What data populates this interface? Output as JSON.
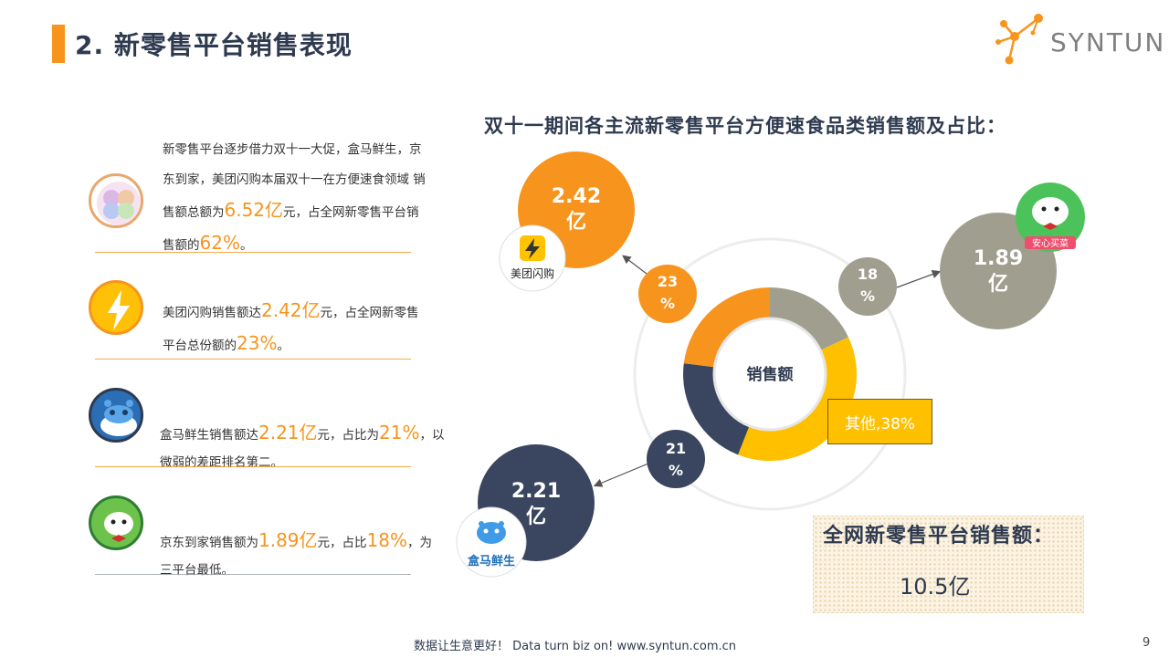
{
  "header": {
    "title": "2. 新零售平台销售表现",
    "brand": "SYNTUN"
  },
  "left_panel": {
    "rows": [
      {
        "icon": "hema-meituan-jd-collage-icon",
        "text_before": "新零售平台逐步借力双十一大促，盒马鲜生，京东到家，美团闪购本届双十一在方便速食领域 销售额总额为",
        "highlight1": "6.52亿",
        "text_middle": "元，占全网新零售平台销售额的",
        "highlight2": "62%",
        "text_after": "。"
      },
      {
        "icon": "meituan-lightning-icon",
        "text_before": "美团闪购销售额达",
        "highlight1": "2.42亿",
        "text_middle": "元，占全网新零售平台总份额的",
        "highlight2": "23%",
        "text_after": "。"
      },
      {
        "icon": "hema-hippo-icon",
        "text_before": "盒马鲜生销售额达",
        "highlight1": "2.21亿",
        "text_middle": "元，占比为",
        "highlight2": "21%",
        "text_after": "，以微弱的差距排名第二。"
      },
      {
        "icon": "jd-dog-icon",
        "text_before": "京东到家销售额为",
        "highlight1": "1.89亿",
        "text_middle": "元，占比",
        "highlight2": "18%",
        "text_after": "，为三平台最低。"
      }
    ]
  },
  "chart_data": {
    "type": "pie",
    "title": "双十一期间各主流新零售平台方便速食品类销售额及占比：",
    "center_label": "销售额",
    "slices": [
      {
        "name": "京东到家",
        "value": 18,
        "amount": "1.89亿",
        "pct_label": "18%",
        "color": "#A09F8F"
      },
      {
        "name": "其他",
        "value": 38,
        "label": "其他,38%",
        "color": "#FFC000"
      },
      {
        "name": "盒马鲜生",
        "value": 21,
        "amount": "2.21亿",
        "pct_label": "21%",
        "color": "#3A4660"
      },
      {
        "name": "美团闪购",
        "value": 23,
        "amount": "2.42亿",
        "pct_label": "23%",
        "color": "#F7941D"
      }
    ],
    "platform_logos": {
      "meituan": "美团闪购",
      "jd": "安心买菜",
      "hema": "盒马鲜生"
    }
  },
  "summary": {
    "title": "全网新零售平台销售额：",
    "value": "10.5亿"
  },
  "footer": {
    "tagline": "数据让生意更好！ Data turn biz on!  www.syntun.com.cn",
    "page": "9"
  }
}
